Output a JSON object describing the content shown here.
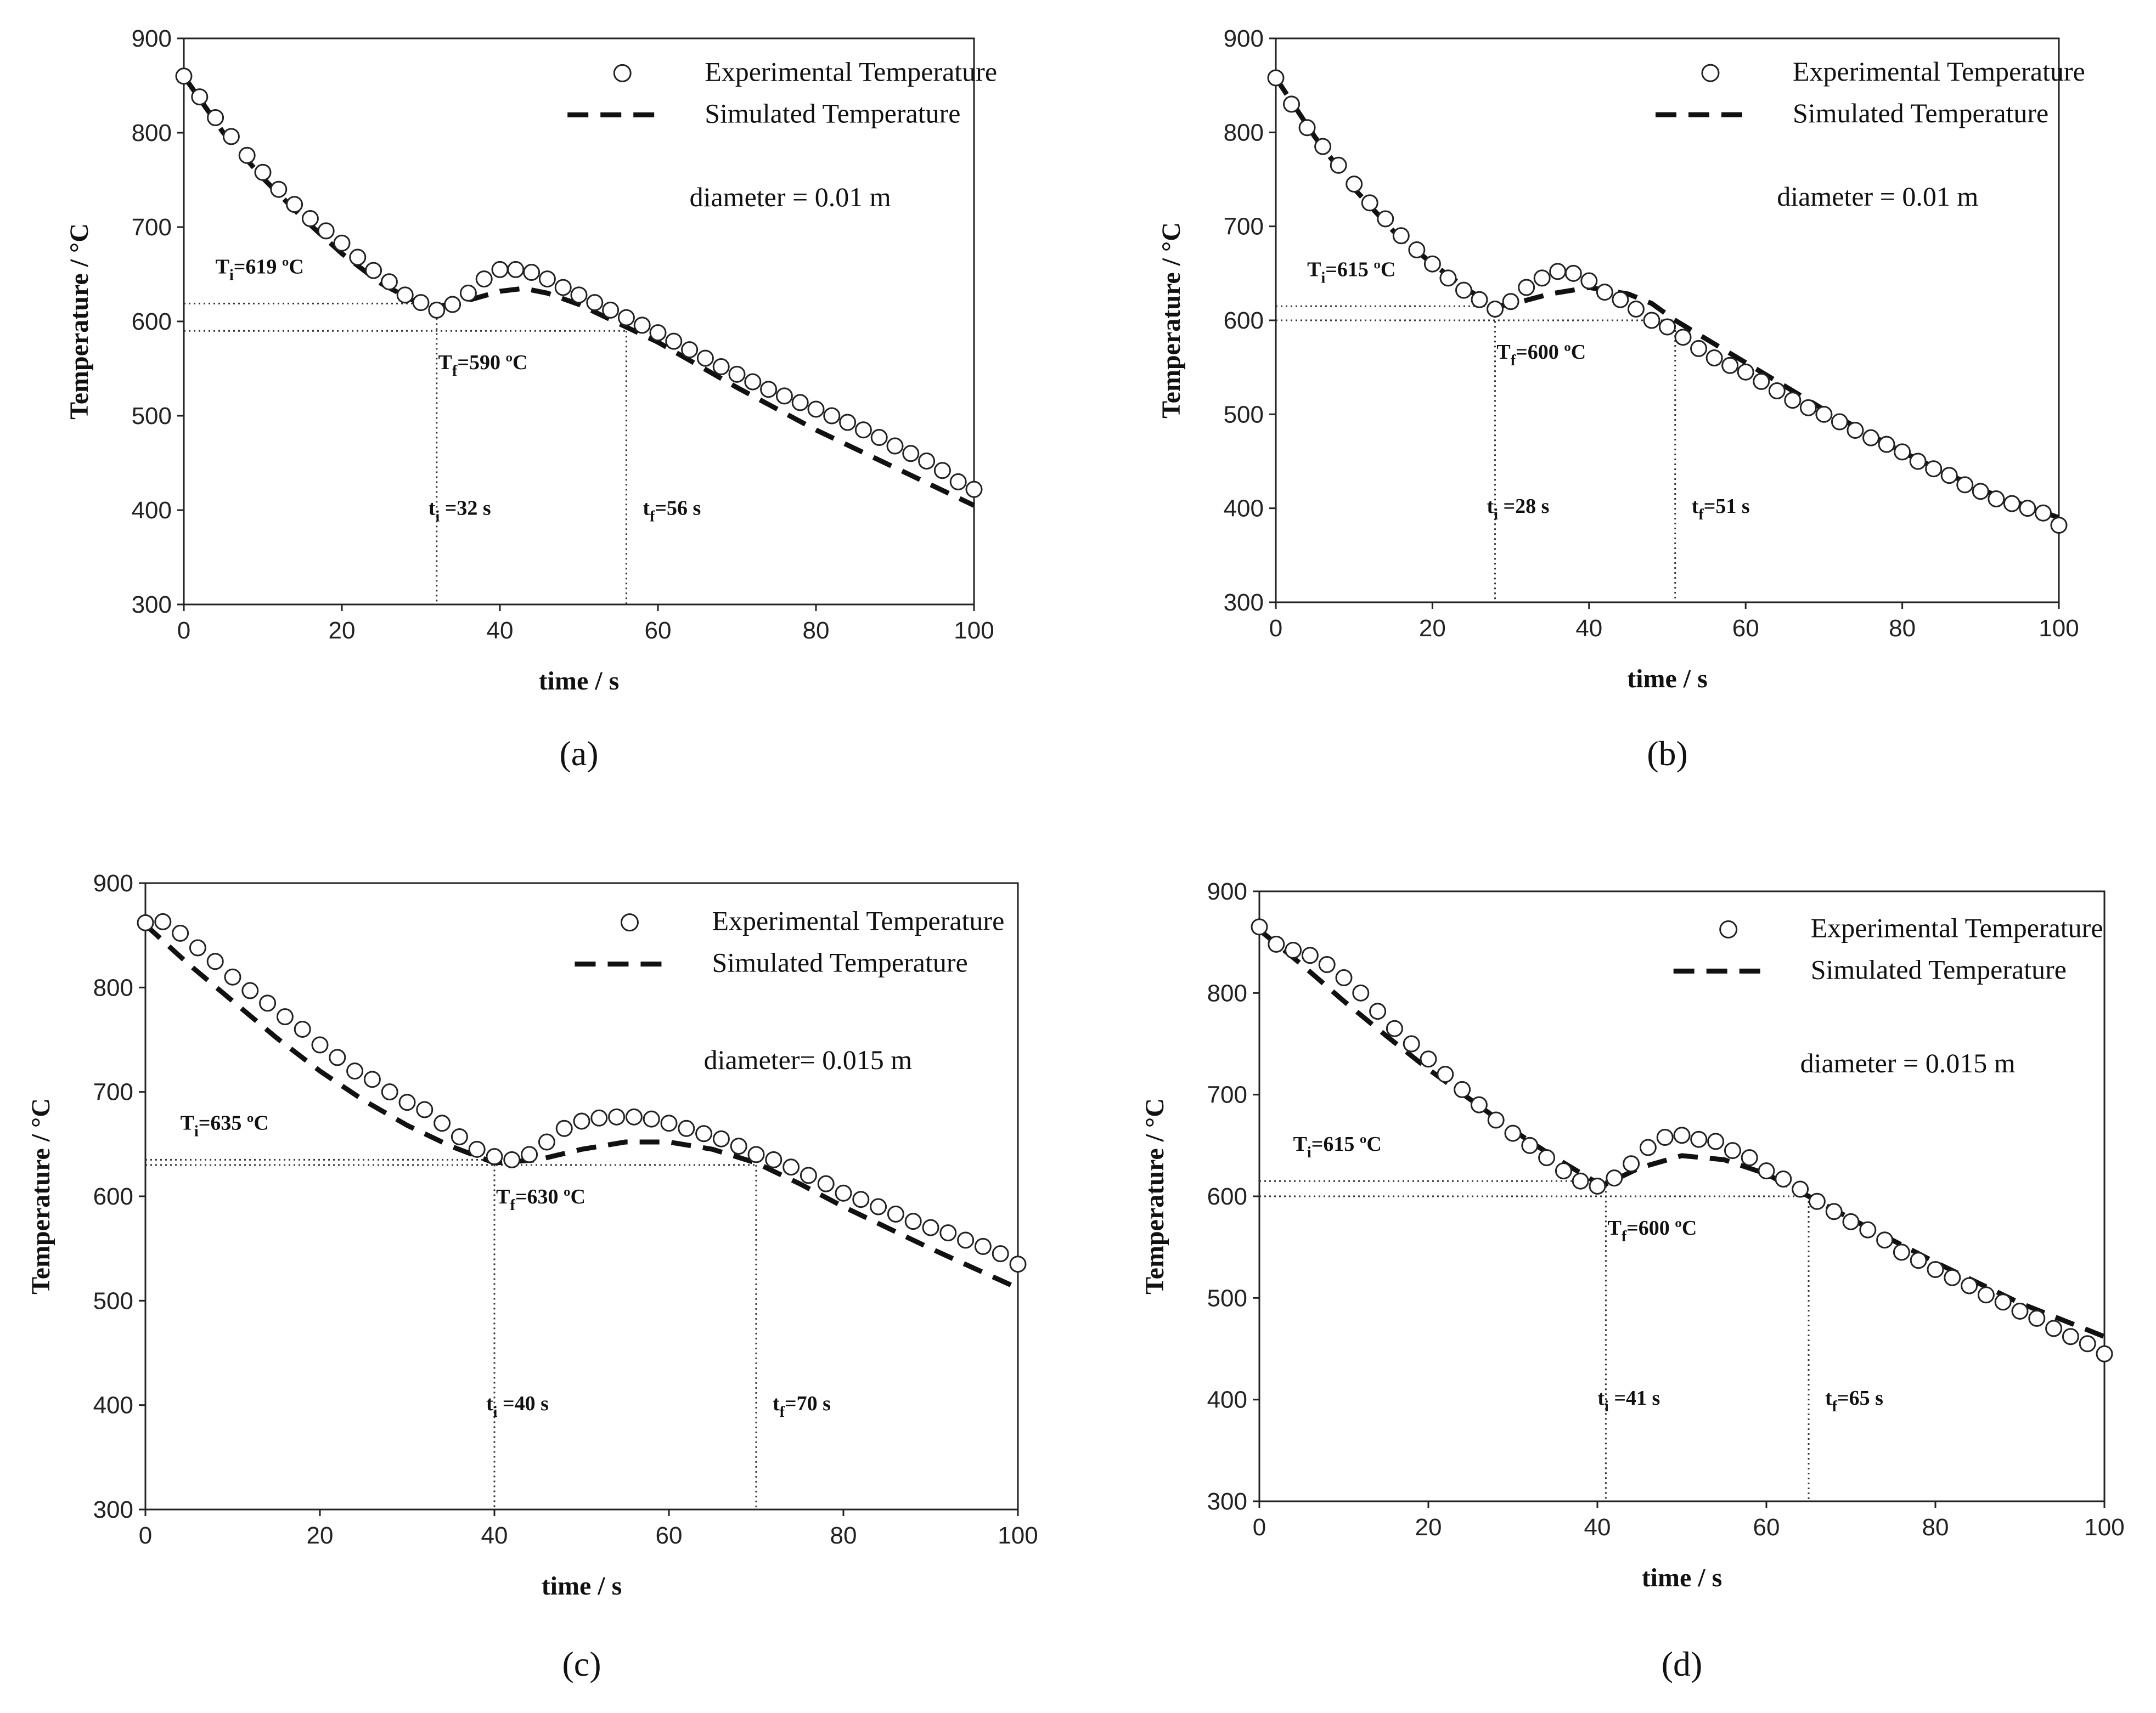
{
  "chart_data": [
    {
      "type": "line",
      "panel_label": "(a)",
      "title": "",
      "xlabel": "time / s",
      "ylabel": "Temperature / °C",
      "xlim": [
        0,
        100
      ],
      "ylim": [
        300,
        900
      ],
      "xticks": [
        0,
        20,
        40,
        60,
        80,
        100
      ],
      "yticks": [
        300,
        400,
        500,
        600,
        700,
        800,
        900
      ],
      "legend": {
        "experimental": "Experimental Temperature",
        "simulated": "Simulated Temperature",
        "placement": "top-right"
      },
      "diameter_label": "diameter = 0.01 m",
      "Ti_label": {
        "main": "T",
        "sub": "i",
        "rest": "=619 ºC"
      },
      "Tf_label": {
        "main": "T",
        "sub": "f",
        "rest": "=590 ºC"
      },
      "ti_label": {
        "main": "t",
        "sub": "i",
        "rest": " =32 s"
      },
      "tf_label": {
        "main": "t",
        "sub": "f",
        "rest": "=56 s"
      },
      "Ti": 619,
      "Tf": 590,
      "ti": 32,
      "tf": 56,
      "series": [
        {
          "name": "Experimental Temperature",
          "style": "markers",
          "x": [
            0,
            2,
            4,
            6,
            8,
            10,
            12,
            14,
            16,
            18,
            20,
            22,
            24,
            26,
            28,
            30,
            32,
            34,
            36,
            38,
            40,
            42,
            44,
            46,
            48,
            50,
            52,
            54,
            56,
            58,
            60,
            62,
            64,
            66,
            68,
            70,
            72,
            74,
            76,
            78,
            80,
            82,
            84,
            86,
            88,
            90,
            92,
            94,
            96,
            98,
            100
          ],
          "y": [
            860,
            838,
            816,
            796,
            776,
            758,
            740,
            724,
            709,
            696,
            683,
            668,
            654,
            642,
            628,
            620,
            612,
            618,
            630,
            645,
            655,
            655,
            652,
            645,
            636,
            628,
            620,
            612,
            604,
            596,
            588,
            579,
            570,
            561,
            552,
            544,
            536,
            528,
            521,
            514,
            507,
            500,
            493,
            485,
            477,
            468,
            460,
            452,
            442,
            430,
            422
          ]
        },
        {
          "name": "Simulated Temperature",
          "style": "dashed",
          "x": [
            0,
            5,
            10,
            15,
            20,
            25,
            30,
            32,
            35,
            40,
            43,
            46,
            50,
            56,
            60,
            70,
            80,
            90,
            100
          ],
          "y": [
            860,
            800,
            752,
            710,
            672,
            640,
            618,
            616,
            620,
            632,
            635,
            630,
            618,
            594,
            578,
            530,
            485,
            445,
            405
          ]
        }
      ]
    },
    {
      "type": "line",
      "panel_label": "(b)",
      "title": "",
      "xlabel": "time / s",
      "ylabel": "Temperature / °C",
      "xlim": [
        0,
        100
      ],
      "ylim": [
        300,
        900
      ],
      "xticks": [
        0,
        20,
        40,
        60,
        80,
        100
      ],
      "yticks": [
        300,
        400,
        500,
        600,
        700,
        800,
        900
      ],
      "legend": {
        "experimental": "Experimental Temperature",
        "simulated": "Simulated Temperature",
        "placement": "top-right"
      },
      "diameter_label": "diameter = 0.01 m",
      "Ti_label": {
        "main": "T",
        "sub": "i",
        "rest": "=615 ºC"
      },
      "Tf_label": {
        "main": "T",
        "sub": "f",
        "rest": "=600 ºC"
      },
      "ti_label": {
        "main": "t",
        "sub": "i",
        "rest": " =28 s"
      },
      "tf_label": {
        "main": "t",
        "sub": "f",
        "rest": "=51 s"
      },
      "Ti": 615,
      "Tf": 600,
      "ti": 28,
      "tf": 51,
      "series": [
        {
          "name": "Experimental Temperature",
          "style": "markers",
          "x": [
            0,
            2,
            4,
            6,
            8,
            10,
            12,
            14,
            16,
            18,
            20,
            22,
            24,
            26,
            28,
            30,
            32,
            34,
            36,
            38,
            40,
            42,
            44,
            46,
            48,
            50,
            52,
            54,
            56,
            58,
            60,
            62,
            64,
            66,
            68,
            70,
            72,
            74,
            76,
            78,
            80,
            82,
            84,
            86,
            88,
            90,
            92,
            94,
            96,
            98,
            100
          ],
          "y": [
            858,
            830,
            805,
            785,
            765,
            745,
            725,
            708,
            690,
            675,
            660,
            645,
            632,
            622,
            612,
            620,
            635,
            645,
            652,
            650,
            642,
            630,
            622,
            612,
            600,
            593,
            582,
            570,
            560,
            552,
            545,
            535,
            525,
            515,
            507,
            500,
            492,
            483,
            475,
            468,
            460,
            450,
            442,
            435,
            425,
            418,
            410,
            405,
            400,
            395,
            382
          ]
        },
        {
          "name": "Simulated Temperature",
          "style": "dashed",
          "x": [
            0,
            5,
            10,
            15,
            20,
            25,
            28,
            30,
            35,
            40,
            45,
            48,
            51,
            55,
            60,
            70,
            80,
            90,
            100
          ],
          "y": [
            858,
            795,
            740,
            695,
            660,
            630,
            615,
            617,
            628,
            635,
            628,
            618,
            600,
            580,
            555,
            505,
            460,
            420,
            390
          ]
        }
      ]
    },
    {
      "type": "line",
      "panel_label": "(c)",
      "title": "",
      "xlabel": "time / s",
      "ylabel": "Temperature / °C",
      "xlim": [
        0,
        100
      ],
      "ylim": [
        300,
        900
      ],
      "xticks": [
        0,
        20,
        40,
        60,
        80,
        100
      ],
      "yticks": [
        300,
        400,
        500,
        600,
        700,
        800,
        900
      ],
      "legend": {
        "experimental": "Experimental Temperature",
        "simulated": "Simulated Temperature",
        "placement": "top-right"
      },
      "diameter_label": "diameter= 0.015 m",
      "Ti_label": {
        "main": "T",
        "sub": "i",
        "rest": "=635 ºC"
      },
      "Tf_label": {
        "main": "T",
        "sub": "f",
        "rest": "=630 ºC"
      },
      "ti_label": {
        "main": "t",
        "sub": "i",
        "rest": " =40 s"
      },
      "tf_label": {
        "main": "t",
        "sub": "f",
        "rest": "=70 s"
      },
      "Ti": 635,
      "Tf": 630,
      "ti": 40,
      "tf": 70,
      "series": [
        {
          "name": "Experimental Temperature",
          "style": "markers",
          "x": [
            0,
            2,
            4,
            6,
            8,
            10,
            12,
            14,
            16,
            18,
            20,
            22,
            24,
            26,
            28,
            30,
            32,
            34,
            36,
            38,
            40,
            42,
            44,
            46,
            48,
            50,
            52,
            54,
            56,
            58,
            60,
            62,
            64,
            66,
            68,
            70,
            72,
            74,
            76,
            78,
            80,
            82,
            84,
            86,
            88,
            90,
            92,
            94,
            96,
            98,
            100
          ],
          "y": [
            862,
            863,
            852,
            838,
            825,
            810,
            797,
            785,
            772,
            760,
            745,
            733,
            720,
            712,
            700,
            690,
            683,
            670,
            657,
            645,
            638,
            635,
            640,
            652,
            665,
            672,
            675,
            676,
            676,
            674,
            670,
            665,
            660,
            655,
            648,
            640,
            635,
            628,
            620,
            612,
            603,
            597,
            590,
            583,
            576,
            570,
            565,
            558,
            552,
            545,
            535
          ]
        },
        {
          "name": "Simulated Temperature",
          "style": "dashed",
          "x": [
            0,
            5,
            10,
            15,
            20,
            25,
            30,
            35,
            40,
            45,
            50,
            55,
            60,
            65,
            70,
            75,
            80,
            90,
            100
          ],
          "y": [
            860,
            822,
            787,
            752,
            720,
            692,
            668,
            648,
            632,
            635,
            645,
            652,
            652,
            645,
            632,
            612,
            590,
            550,
            512
          ]
        }
      ]
    },
    {
      "type": "line",
      "panel_label": "(d)",
      "title": "",
      "xlabel": "time / s",
      "ylabel": "Temperature / °C",
      "xlim": [
        0,
        100
      ],
      "ylim": [
        300,
        900
      ],
      "xticks": [
        0,
        20,
        40,
        60,
        80,
        100
      ],
      "yticks": [
        300,
        400,
        500,
        600,
        700,
        800,
        900
      ],
      "legend": {
        "experimental": "Experimental Temperature",
        "simulated": "Simulated Temperature",
        "placement": "top-right"
      },
      "diameter_label": "diameter = 0.015 m",
      "Ti_label": {
        "main": "T",
        "sub": "i",
        "rest": "=615 ºC"
      },
      "Tf_label": {
        "main": "T",
        "sub": "f",
        "rest": "=600 ºC"
      },
      "ti_label": {
        "main": "t",
        "sub": "i",
        "rest": " =41 s"
      },
      "tf_label": {
        "main": "t",
        "sub": "f",
        "rest": "=65 s"
      },
      "Ti": 615,
      "Tf": 600,
      "ti": 41,
      "tf": 65,
      "series": [
        {
          "name": "Experimental Temperature",
          "style": "markers",
          "x": [
            0,
            2,
            4,
            6,
            8,
            10,
            12,
            14,
            16,
            18,
            20,
            22,
            24,
            26,
            28,
            30,
            32,
            34,
            36,
            38,
            40,
            42,
            44,
            46,
            48,
            50,
            52,
            54,
            56,
            58,
            60,
            62,
            64,
            66,
            68,
            70,
            72,
            74,
            76,
            78,
            80,
            82,
            84,
            86,
            88,
            90,
            92,
            94,
            96,
            98,
            100
          ],
          "y": [
            865,
            848,
            842,
            837,
            828,
            815,
            800,
            782,
            765,
            750,
            735,
            720,
            705,
            690,
            675,
            662,
            650,
            638,
            625,
            615,
            610,
            618,
            632,
            648,
            658,
            660,
            656,
            654,
            645,
            638,
            625,
            617,
            607,
            595,
            585,
            575,
            567,
            557,
            545,
            537,
            528,
            520,
            512,
            503,
            496,
            487,
            480,
            470,
            462,
            455,
            445
          ]
        },
        {
          "name": "Simulated Temperature",
          "style": "dashed",
          "x": [
            0,
            5,
            10,
            15,
            20,
            25,
            30,
            35,
            40,
            41,
            45,
            50,
            55,
            60,
            65,
            70,
            80,
            90,
            100
          ],
          "y": [
            862,
            828,
            792,
            758,
            725,
            695,
            665,
            638,
            613,
            612,
            628,
            640,
            636,
            622,
            600,
            578,
            535,
            495,
            462
          ]
        }
      ]
    }
  ]
}
